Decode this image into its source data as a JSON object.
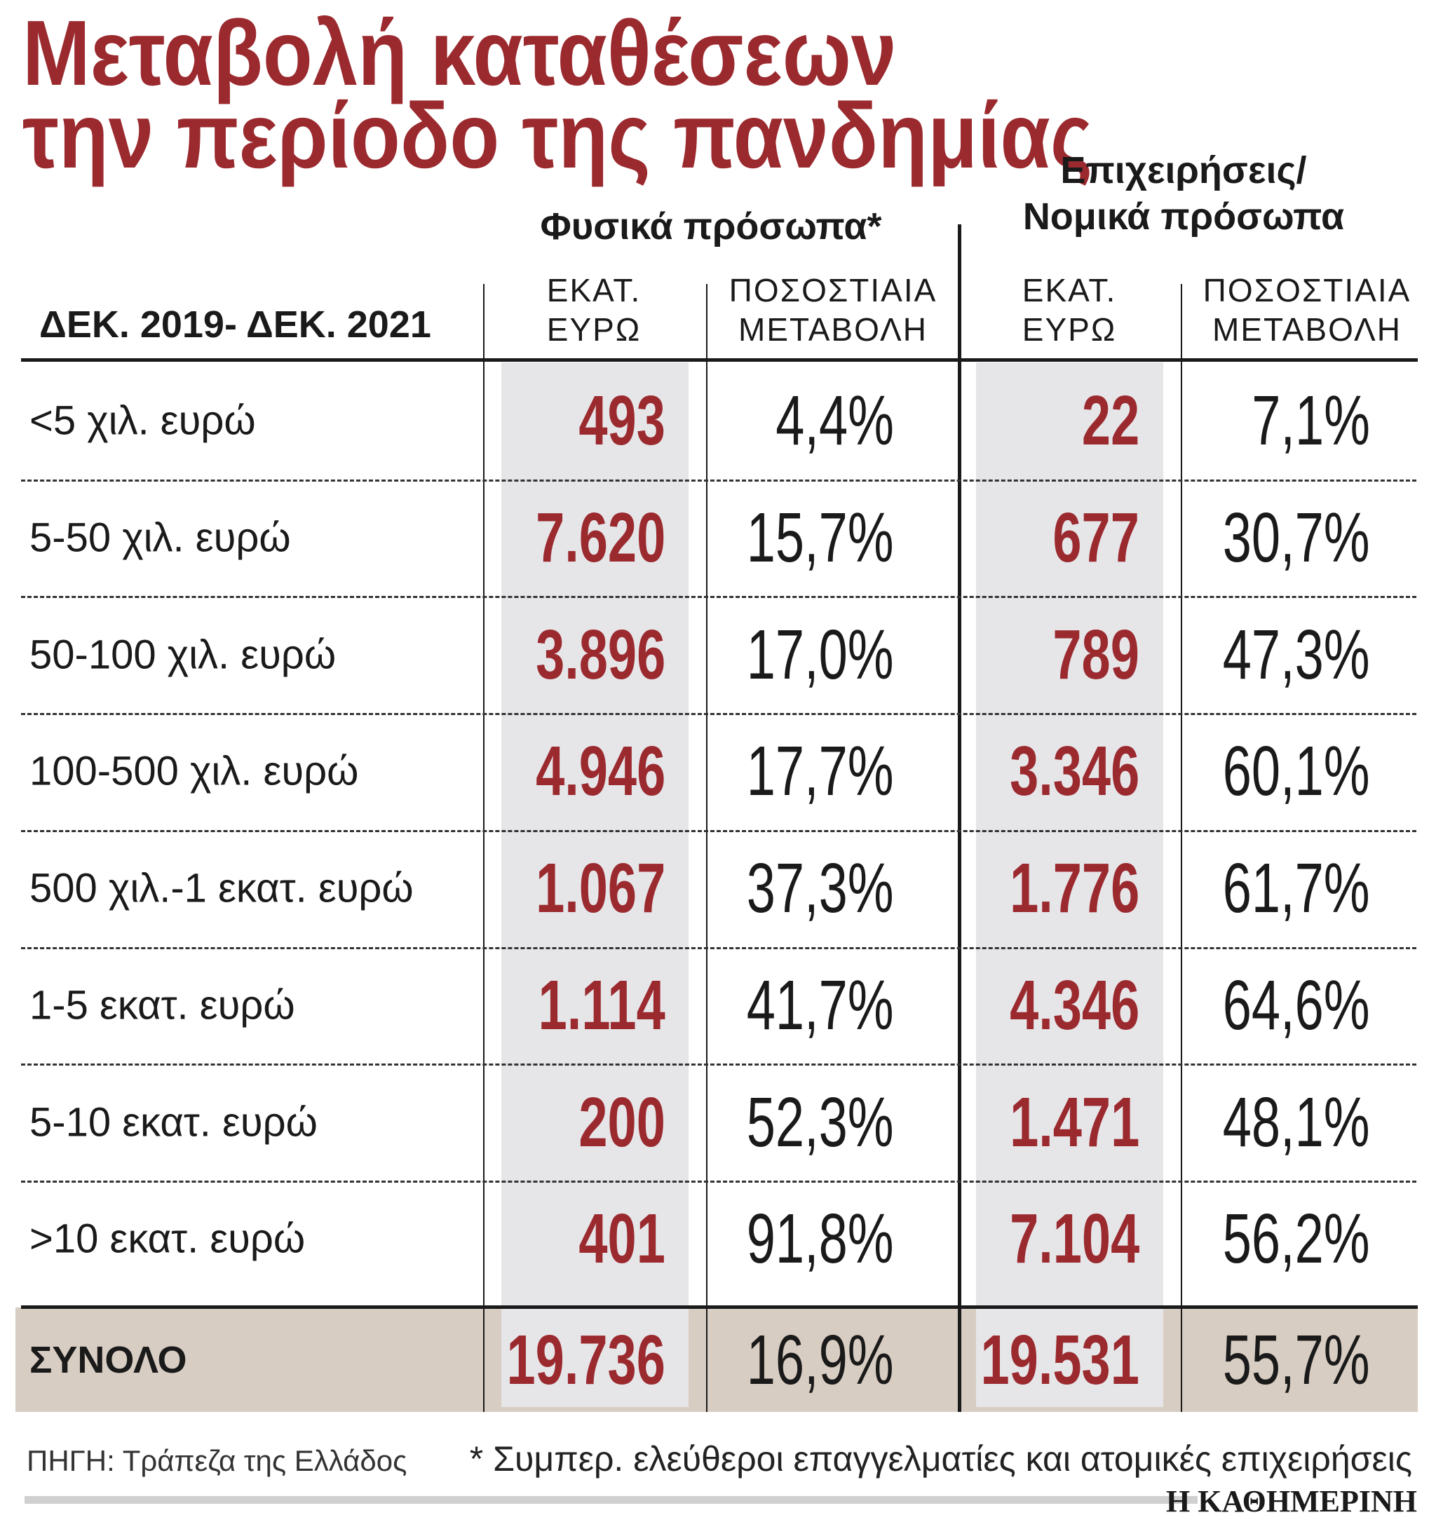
{
  "header": {
    "title_lines": [
      "Μεταβολή καταθέσεων",
      "την περίοδο της πανδημίας"
    ]
  },
  "table": {
    "groups": [
      [
        "Φυσικά πρόσωπα*"
      ],
      [
        "Επιχειρήσεις/",
        "Νομικά πρόσωπα"
      ]
    ],
    "row_header": "ΔΕΚ. 2019- ΔΕΚ. 2021",
    "columns": [
      [
        "ΕΚΑΤ.",
        "ΕΥΡΩ"
      ],
      [
        "ΠΟΣΟΣΤΙΑΙΑ",
        "ΜΕΤΑΒΟΛΗ"
      ],
      [
        "ΕΚΑΤ.",
        "ΕΥΡΩ"
      ],
      [
        "ΠΟΣΟΣΤΙΑΙΑ",
        "ΜΕΤΑΒΟΛΗ"
      ]
    ],
    "rows": [
      [
        "<5 χιλ. ευρώ",
        "493",
        "4,4%",
        "22",
        "7,1%"
      ],
      [
        "5-50 χιλ. ευρώ",
        "7.620",
        "15,7%",
        "677",
        "30,7%"
      ],
      [
        "50-100 χιλ. ευρώ",
        "3.896",
        "17,0%",
        "789",
        "47,3%"
      ],
      [
        "100-500 χιλ. ευρώ",
        "4.946",
        "17,7%",
        "3.346",
        "60,1%"
      ],
      [
        "500 χιλ.-1 εκατ. ευρώ",
        "1.067",
        "37,3%",
        "1.776",
        "61,7%"
      ],
      [
        "1-5 εκατ. ευρώ",
        "1.114",
        "41,7%",
        "4.346",
        "64,6%"
      ],
      [
        "5-10 εκατ. ευρώ",
        "200",
        "52,3%",
        "1.471",
        "48,1%"
      ],
      [
        ">10 εκατ. ευρώ",
        "401",
        "91,8%",
        "7.104",
        "56,2%"
      ]
    ],
    "total": [
      "ΣΥΝΟΛΟ",
      "19.736",
      "16,9%",
      "19.531",
      "55,7%"
    ]
  },
  "footer": {
    "source": "ΠΗΓΗ: Τράπεζα της Ελλάδος",
    "note": "* Συμπερ. ελεύθεροι επαγγελματίες και ατομικές επιχειρήσεις",
    "brand": "Η ΚΑΘΗΜΕΡΙΝΗ"
  }
}
